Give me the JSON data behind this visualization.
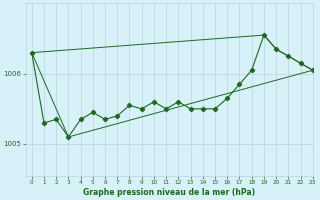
{
  "title": "Graphe pression niveau de la mer (hPa)",
  "bg_color": "#d8f0f8",
  "grid_color": "#b8d4e0",
  "line_color": "#1a6b1a",
  "xlim": [
    -0.5,
    23
  ],
  "ylim": [
    1004.55,
    1007.0
  ],
  "yticks": [
    1005,
    1006
  ],
  "xticks": [
    0,
    1,
    2,
    3,
    4,
    5,
    6,
    7,
    8,
    9,
    10,
    11,
    12,
    13,
    14,
    15,
    16,
    17,
    18,
    19,
    20,
    21,
    22,
    23
  ],
  "xlabel_fontsize": 5.5,
  "tick_fontsize": 5,
  "series1_x": [
    0,
    1,
    2,
    3,
    4,
    5,
    6,
    7,
    8,
    9,
    10,
    11,
    12,
    13,
    14,
    15,
    16,
    17,
    18,
    19,
    20,
    21,
    22,
    23
  ],
  "series1_y": [
    1006.3,
    1005.3,
    1005.35,
    1005.1,
    1005.35,
    1005.45,
    1005.35,
    1005.4,
    1005.55,
    1005.5,
    1005.6,
    1005.5,
    1005.6,
    1005.5,
    1005.5,
    1005.5,
    1005.65,
    1005.85,
    1006.05,
    1006.55,
    1006.35,
    1006.25,
    1006.15,
    1006.05
  ],
  "series2_x": [
    0,
    3,
    23
  ],
  "series2_y": [
    1006.3,
    1005.1,
    1006.05
  ],
  "series3_x": [
    0,
    19,
    20,
    21,
    22,
    23
  ],
  "series3_y": [
    1006.3,
    1006.55,
    1006.35,
    1006.25,
    1006.15,
    1006.05
  ]
}
